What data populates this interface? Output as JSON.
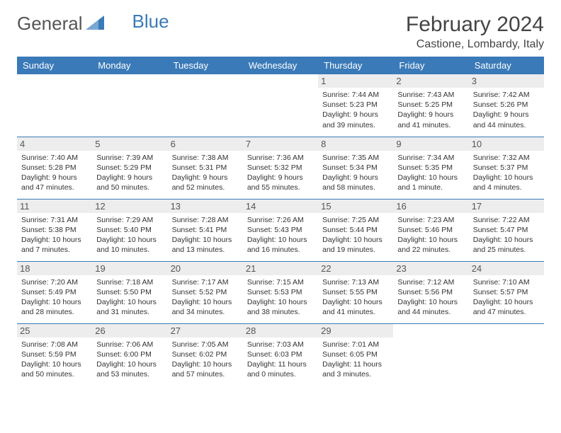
{
  "brand": {
    "part1": "General",
    "part2": "Blue"
  },
  "title": "February 2024",
  "location": "Castione, Lombardy, Italy",
  "colors": {
    "header_bg": "#3a7ab8",
    "header_text": "#ffffff",
    "daynum_bg": "#ededed",
    "border": "#3a7ab8",
    "text": "#333333"
  },
  "day_names": [
    "Sunday",
    "Monday",
    "Tuesday",
    "Wednesday",
    "Thursday",
    "Friday",
    "Saturday"
  ],
  "weeks": [
    [
      null,
      null,
      null,
      null,
      {
        "n": "1",
        "sr": "Sunrise: 7:44 AM",
        "ss": "Sunset: 5:23 PM",
        "d1": "Daylight: 9 hours",
        "d2": "and 39 minutes."
      },
      {
        "n": "2",
        "sr": "Sunrise: 7:43 AM",
        "ss": "Sunset: 5:25 PM",
        "d1": "Daylight: 9 hours",
        "d2": "and 41 minutes."
      },
      {
        "n": "3",
        "sr": "Sunrise: 7:42 AM",
        "ss": "Sunset: 5:26 PM",
        "d1": "Daylight: 9 hours",
        "d2": "and 44 minutes."
      }
    ],
    [
      {
        "n": "4",
        "sr": "Sunrise: 7:40 AM",
        "ss": "Sunset: 5:28 PM",
        "d1": "Daylight: 9 hours",
        "d2": "and 47 minutes."
      },
      {
        "n": "5",
        "sr": "Sunrise: 7:39 AM",
        "ss": "Sunset: 5:29 PM",
        "d1": "Daylight: 9 hours",
        "d2": "and 50 minutes."
      },
      {
        "n": "6",
        "sr": "Sunrise: 7:38 AM",
        "ss": "Sunset: 5:31 PM",
        "d1": "Daylight: 9 hours",
        "d2": "and 52 minutes."
      },
      {
        "n": "7",
        "sr": "Sunrise: 7:36 AM",
        "ss": "Sunset: 5:32 PM",
        "d1": "Daylight: 9 hours",
        "d2": "and 55 minutes."
      },
      {
        "n": "8",
        "sr": "Sunrise: 7:35 AM",
        "ss": "Sunset: 5:34 PM",
        "d1": "Daylight: 9 hours",
        "d2": "and 58 minutes."
      },
      {
        "n": "9",
        "sr": "Sunrise: 7:34 AM",
        "ss": "Sunset: 5:35 PM",
        "d1": "Daylight: 10 hours",
        "d2": "and 1 minute."
      },
      {
        "n": "10",
        "sr": "Sunrise: 7:32 AM",
        "ss": "Sunset: 5:37 PM",
        "d1": "Daylight: 10 hours",
        "d2": "and 4 minutes."
      }
    ],
    [
      {
        "n": "11",
        "sr": "Sunrise: 7:31 AM",
        "ss": "Sunset: 5:38 PM",
        "d1": "Daylight: 10 hours",
        "d2": "and 7 minutes."
      },
      {
        "n": "12",
        "sr": "Sunrise: 7:29 AM",
        "ss": "Sunset: 5:40 PM",
        "d1": "Daylight: 10 hours",
        "d2": "and 10 minutes."
      },
      {
        "n": "13",
        "sr": "Sunrise: 7:28 AM",
        "ss": "Sunset: 5:41 PM",
        "d1": "Daylight: 10 hours",
        "d2": "and 13 minutes."
      },
      {
        "n": "14",
        "sr": "Sunrise: 7:26 AM",
        "ss": "Sunset: 5:43 PM",
        "d1": "Daylight: 10 hours",
        "d2": "and 16 minutes."
      },
      {
        "n": "15",
        "sr": "Sunrise: 7:25 AM",
        "ss": "Sunset: 5:44 PM",
        "d1": "Daylight: 10 hours",
        "d2": "and 19 minutes."
      },
      {
        "n": "16",
        "sr": "Sunrise: 7:23 AM",
        "ss": "Sunset: 5:46 PM",
        "d1": "Daylight: 10 hours",
        "d2": "and 22 minutes."
      },
      {
        "n": "17",
        "sr": "Sunrise: 7:22 AM",
        "ss": "Sunset: 5:47 PM",
        "d1": "Daylight: 10 hours",
        "d2": "and 25 minutes."
      }
    ],
    [
      {
        "n": "18",
        "sr": "Sunrise: 7:20 AM",
        "ss": "Sunset: 5:49 PM",
        "d1": "Daylight: 10 hours",
        "d2": "and 28 minutes."
      },
      {
        "n": "19",
        "sr": "Sunrise: 7:18 AM",
        "ss": "Sunset: 5:50 PM",
        "d1": "Daylight: 10 hours",
        "d2": "and 31 minutes."
      },
      {
        "n": "20",
        "sr": "Sunrise: 7:17 AM",
        "ss": "Sunset: 5:52 PM",
        "d1": "Daylight: 10 hours",
        "d2": "and 34 minutes."
      },
      {
        "n": "21",
        "sr": "Sunrise: 7:15 AM",
        "ss": "Sunset: 5:53 PM",
        "d1": "Daylight: 10 hours",
        "d2": "and 38 minutes."
      },
      {
        "n": "22",
        "sr": "Sunrise: 7:13 AM",
        "ss": "Sunset: 5:55 PM",
        "d1": "Daylight: 10 hours",
        "d2": "and 41 minutes."
      },
      {
        "n": "23",
        "sr": "Sunrise: 7:12 AM",
        "ss": "Sunset: 5:56 PM",
        "d1": "Daylight: 10 hours",
        "d2": "and 44 minutes."
      },
      {
        "n": "24",
        "sr": "Sunrise: 7:10 AM",
        "ss": "Sunset: 5:57 PM",
        "d1": "Daylight: 10 hours",
        "d2": "and 47 minutes."
      }
    ],
    [
      {
        "n": "25",
        "sr": "Sunrise: 7:08 AM",
        "ss": "Sunset: 5:59 PM",
        "d1": "Daylight: 10 hours",
        "d2": "and 50 minutes."
      },
      {
        "n": "26",
        "sr": "Sunrise: 7:06 AM",
        "ss": "Sunset: 6:00 PM",
        "d1": "Daylight: 10 hours",
        "d2": "and 53 minutes."
      },
      {
        "n": "27",
        "sr": "Sunrise: 7:05 AM",
        "ss": "Sunset: 6:02 PM",
        "d1": "Daylight: 10 hours",
        "d2": "and 57 minutes."
      },
      {
        "n": "28",
        "sr": "Sunrise: 7:03 AM",
        "ss": "Sunset: 6:03 PM",
        "d1": "Daylight: 11 hours",
        "d2": "and 0 minutes."
      },
      {
        "n": "29",
        "sr": "Sunrise: 7:01 AM",
        "ss": "Sunset: 6:05 PM",
        "d1": "Daylight: 11 hours",
        "d2": "and 3 minutes."
      },
      null,
      null
    ]
  ]
}
